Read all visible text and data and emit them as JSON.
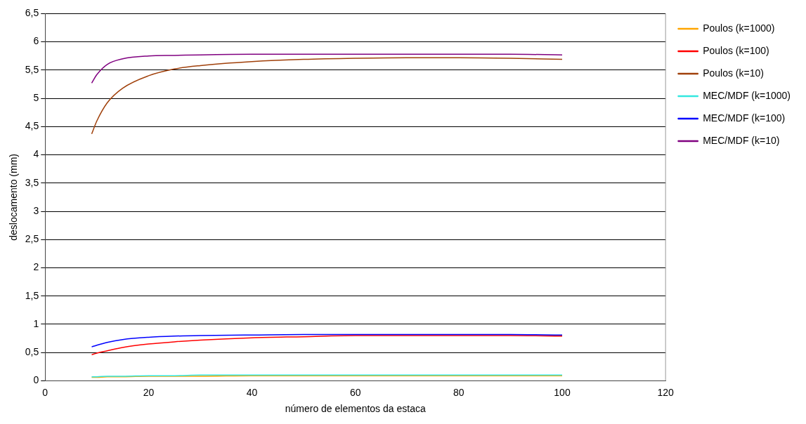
{
  "chart_data": {
    "type": "line",
    "xlabel": "número de elementos da estaca",
    "ylabel": "deslocamento (mm)",
    "xlim": [
      0,
      120
    ],
    "xticks": [
      0,
      20,
      40,
      60,
      80,
      100,
      120
    ],
    "ylim": [
      0,
      6.5
    ],
    "yticks": [
      0,
      {
        "value": 0.5,
        "label": "0,5"
      },
      1,
      {
        "value": 1.5,
        "label": "1,5"
      },
      2,
      {
        "value": 2.5,
        "label": "2,5"
      },
      3,
      {
        "value": 3.5,
        "label": "3,5"
      },
      4,
      {
        "value": 4.5,
        "label": "4,5"
      },
      5,
      {
        "value": 5.5,
        "label": "5,5"
      },
      6,
      {
        "value": 6.5,
        "label": "6,5"
      }
    ],
    "grid": "y",
    "legend": "top right",
    "marker": "none",
    "line_style": "solid",
    "x": [
      9,
      10,
      12,
      15,
      20,
      25,
      30,
      40,
      50,
      60,
      70,
      80,
      90,
      100
    ],
    "series": [
      {
        "name": "Poulos (k=1000)",
        "color": "#ffa500",
        "values": [
          0.06,
          0.06,
          0.07,
          0.07,
          0.08,
          0.08,
          0.08,
          0.09,
          0.09,
          0.09,
          0.09,
          0.09,
          0.09,
          0.09
        ]
      },
      {
        "name": "Poulos (k=100)",
        "color": "#ff0000",
        "values": [
          0.46,
          0.49,
          0.53,
          0.59,
          0.65,
          0.69,
          0.72,
          0.76,
          0.78,
          0.8,
          0.8,
          0.8,
          0.8,
          0.79
        ]
      },
      {
        "name": "Poulos (k=10)",
        "color": "#a0400a",
        "values": [
          4.37,
          4.6,
          4.92,
          5.18,
          5.4,
          5.52,
          5.58,
          5.65,
          5.69,
          5.71,
          5.72,
          5.72,
          5.71,
          5.69
        ]
      },
      {
        "name": "MEC/MDF (k=1000)",
        "color": "#33e8e0",
        "values": [
          0.07,
          0.07,
          0.08,
          0.08,
          0.09,
          0.09,
          0.1,
          0.1,
          0.1,
          0.1,
          0.1,
          0.1,
          0.1,
          0.1
        ]
      },
      {
        "name": "MEC/MDF (k=100)",
        "color": "#0000ff",
        "values": [
          0.6,
          0.63,
          0.68,
          0.73,
          0.77,
          0.79,
          0.8,
          0.81,
          0.82,
          0.82,
          0.82,
          0.82,
          0.82,
          0.81
        ]
      },
      {
        "name": "MEC/MDF (k=10)",
        "color": "#800080",
        "values": [
          5.27,
          5.42,
          5.6,
          5.7,
          5.75,
          5.76,
          5.77,
          5.78,
          5.78,
          5.78,
          5.78,
          5.78,
          5.78,
          5.77
        ]
      }
    ]
  }
}
